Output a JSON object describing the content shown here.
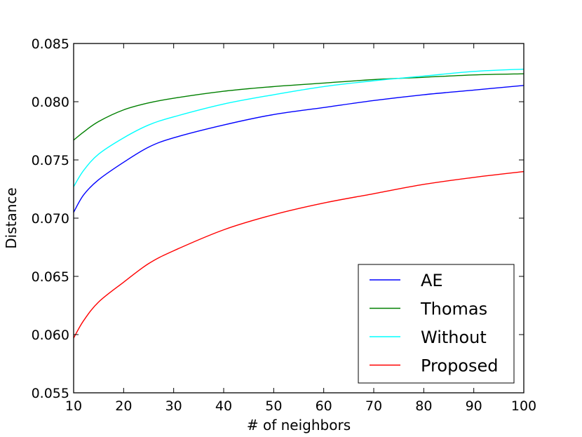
{
  "chart_data": {
    "type": "line",
    "title": "",
    "xlabel": "# of neighbors",
    "ylabel": "Distance",
    "xlim": [
      10,
      100
    ],
    "ylim": [
      0.055,
      0.085
    ],
    "xticks": [
      10,
      20,
      30,
      40,
      50,
      60,
      70,
      80,
      90,
      100
    ],
    "yticks": [
      0.055,
      0.06,
      0.065,
      0.07,
      0.075,
      0.08,
      0.085
    ],
    "ytick_labels": [
      "0.055",
      "0.060",
      "0.065",
      "0.070",
      "0.075",
      "0.080",
      "0.085"
    ],
    "grid": false,
    "legend": "lower-right",
    "x": [
      10,
      12,
      15,
      20,
      25,
      30,
      40,
      50,
      60,
      70,
      80,
      90,
      100
    ],
    "series": [
      {
        "name": "AE",
        "color": "#0000ff",
        "values": [
          0.0705,
          0.072,
          0.0733,
          0.0748,
          0.0761,
          0.0769,
          0.078,
          0.0789,
          0.0795,
          0.0801,
          0.0806,
          0.081,
          0.0814
        ]
      },
      {
        "name": "Thomas",
        "color": "#008000",
        "values": [
          0.0767,
          0.0774,
          0.0783,
          0.0793,
          0.0799,
          0.0803,
          0.0809,
          0.0813,
          0.0816,
          0.0819,
          0.0821,
          0.0823,
          0.0824
        ]
      },
      {
        "name": "Without",
        "color": "#00ffff",
        "values": [
          0.0727,
          0.0741,
          0.0755,
          0.0769,
          0.078,
          0.0787,
          0.0798,
          0.0806,
          0.0813,
          0.0818,
          0.0822,
          0.0826,
          0.0828
        ]
      },
      {
        "name": "Proposed",
        "color": "#ff0000",
        "values": [
          0.0597,
          0.0612,
          0.0628,
          0.0645,
          0.0661,
          0.0672,
          0.069,
          0.0703,
          0.0713,
          0.0721,
          0.0729,
          0.0735,
          0.074
        ]
      }
    ]
  }
}
